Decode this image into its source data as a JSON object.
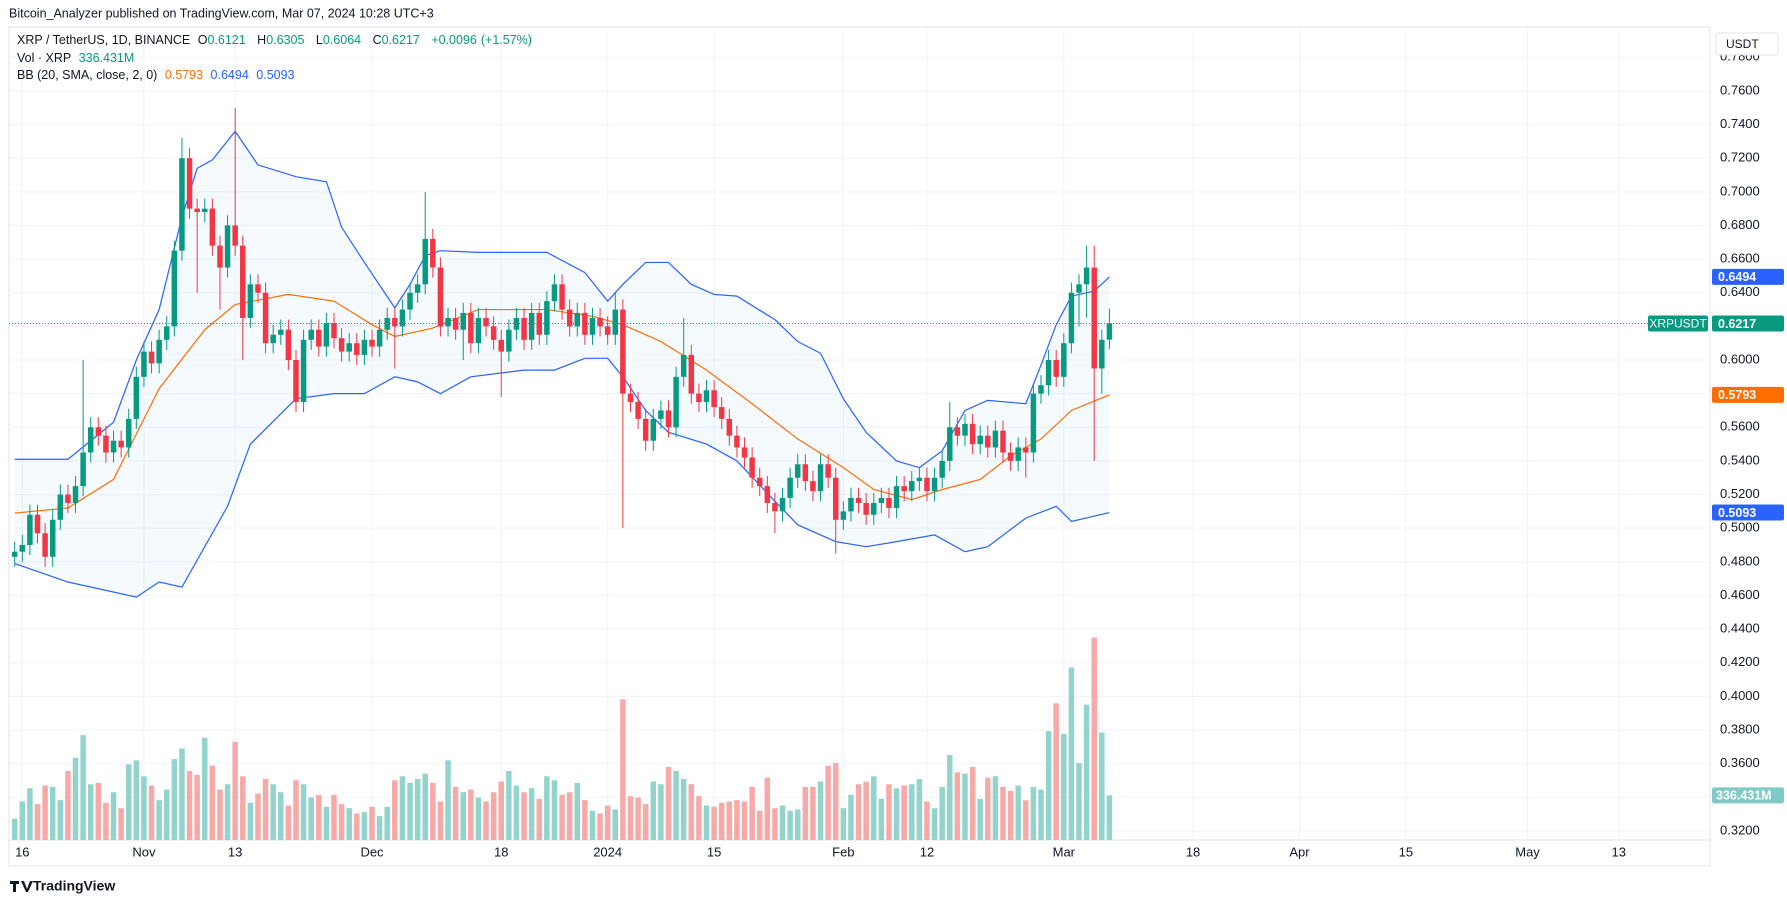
{
  "header": {
    "author_line": "Bitcoin_Analyzer published on TradingView.com, Mar 07, 2024 10:28 UTC+3",
    "footer_logo": "TradingView"
  },
  "chart_data": {
    "type": "candlestick",
    "symbol_line": "XRP / TetherUS, 1D, BINANCE",
    "ohlc_prefixes": [
      "O",
      "H",
      "L",
      "C"
    ],
    "change": "+0.0096",
    "change_pct": "(+1.57%)",
    "currency": "USDT",
    "ticker": "XRPUSDT",
    "grid": true,
    "up_color": "#089981",
    "down_color": "#f23645",
    "xlim": [
      -0.75,
      223
    ],
    "xticks": [
      {
        "value": 1,
        "label": "16"
      },
      {
        "value": 17,
        "label": "Nov"
      },
      {
        "value": 29,
        "label": "13"
      },
      {
        "value": 47,
        "label": "Dec"
      },
      {
        "value": 64,
        "label": "18"
      },
      {
        "value": 78,
        "label": "2024"
      },
      {
        "value": 92,
        "label": "15"
      },
      {
        "value": 109,
        "label": "Feb"
      },
      {
        "value": 120,
        "label": "12"
      },
      {
        "value": 138,
        "label": "Mar"
      },
      {
        "value": 155,
        "label": "18"
      },
      {
        "value": 169,
        "label": "Apr"
      },
      {
        "value": 183,
        "label": "15"
      },
      {
        "value": 199,
        "label": "May"
      },
      {
        "value": 211,
        "label": "13"
      }
    ],
    "ylim": [
      0.3146,
      0.798
    ],
    "yticks": [
      {
        "value": 0.32,
        "label": "0.3200"
      },
      {
        "value": 0.34,
        "label": "0.3400"
      },
      {
        "value": 0.36,
        "label": "0.3600"
      },
      {
        "value": 0.38,
        "label": "0.3800"
      },
      {
        "value": 0.4,
        "label": "0.4000"
      },
      {
        "value": 0.42,
        "label": "0.4200"
      },
      {
        "value": 0.44,
        "label": "0.4400"
      },
      {
        "value": 0.46,
        "label": "0.4600"
      },
      {
        "value": 0.48,
        "label": "0.4800"
      },
      {
        "value": 0.5,
        "label": "0.5000"
      },
      {
        "value": 0.52,
        "label": "0.5200"
      },
      {
        "value": 0.54,
        "label": "0.5400"
      },
      {
        "value": 0.56,
        "label": "0.5600"
      },
      {
        "value": 0.58,
        "label": "0.5800"
      },
      {
        "value": 0.6,
        "label": "0.6000"
      },
      {
        "value": 0.62,
        "label": "0.6200"
      },
      {
        "value": 0.64,
        "label": "0.6400"
      },
      {
        "value": 0.66,
        "label": "0.6600"
      },
      {
        "value": 0.68,
        "label": "0.6800"
      },
      {
        "value": 0.7,
        "label": "0.7000"
      },
      {
        "value": 0.72,
        "label": "0.7200"
      },
      {
        "value": 0.74,
        "label": "0.7400"
      },
      {
        "value": 0.76,
        "label": "0.7600"
      },
      {
        "value": 0.78,
        "label": "0.7800"
      }
    ],
    "open": [
      0.483,
      0.486,
      0.49,
      0.508,
      0.497,
      0.483,
      0.505,
      0.52,
      0.515,
      0.525,
      0.545,
      0.56,
      0.555,
      0.545,
      0.552,
      0.548,
      0.565,
      0.59,
      0.605,
      0.598,
      0.612,
      0.62,
      0.665,
      0.72,
      0.69,
      0.688,
      0.69,
      0.668,
      0.655,
      0.68,
      0.668,
      0.625,
      0.645,
      0.64,
      0.61,
      0.615,
      0.618,
      0.6,
      0.575,
      0.612,
      0.618,
      0.608,
      0.622,
      0.613,
      0.605,
      0.61,
      0.603,
      0.612,
      0.608,
      0.618,
      0.625,
      0.62,
      0.63,
      0.64,
      0.645,
      0.672,
      0.655,
      0.62,
      0.625,
      0.618,
      0.628,
      0.61,
      0.625,
      0.62,
      0.612,
      0.605,
      0.618,
      0.625,
      0.612,
      0.628,
      0.615,
      0.635,
      0.645,
      0.63,
      0.62,
      0.628,
      0.615,
      0.625,
      0.62,
      0.615,
      0.63,
      0.58,
      0.575,
      0.565,
      0.552,
      0.565,
      0.57,
      0.56,
      0.59,
      0.603,
      0.58,
      0.575,
      0.582,
      0.572,
      0.565,
      0.555,
      0.548,
      0.542,
      0.53,
      0.525,
      0.515,
      0.51,
      0.518,
      0.53,
      0.538,
      0.528,
      0.522,
      0.538,
      0.53,
      0.505,
      0.51,
      0.518,
      0.515,
      0.508,
      0.515,
      0.518,
      0.512,
      0.525,
      0.522,
      0.528,
      0.53,
      0.522,
      0.53,
      0.54,
      0.56,
      0.555,
      0.562,
      0.55,
      0.555,
      0.548,
      0.558,
      0.545,
      0.54,
      0.548,
      0.545,
      0.58,
      0.585,
      0.6,
      0.59,
      0.61,
      0.64,
      0.645,
      0.655,
      0.595,
      0.6121
    ],
    "high": [
      0.492,
      0.496,
      0.514,
      0.514,
      0.503,
      0.511,
      0.526,
      0.526,
      0.531,
      0.6,
      0.566,
      0.566,
      0.561,
      0.558,
      0.558,
      0.571,
      0.596,
      0.611,
      0.611,
      0.618,
      0.626,
      0.671,
      0.732,
      0.726,
      0.696,
      0.696,
      0.696,
      0.674,
      0.686,
      0.75,
      0.674,
      0.651,
      0.651,
      0.646,
      0.621,
      0.624,
      0.624,
      0.606,
      0.618,
      0.624,
      0.624,
      0.628,
      0.628,
      0.619,
      0.616,
      0.616,
      0.618,
      0.618,
      0.624,
      0.631,
      0.631,
      0.636,
      0.646,
      0.651,
      0.7,
      0.678,
      0.661,
      0.631,
      0.631,
      0.634,
      0.634,
      0.631,
      0.631,
      0.626,
      0.618,
      0.624,
      0.631,
      0.631,
      0.634,
      0.634,
      0.641,
      0.651,
      0.651,
      0.636,
      0.634,
      0.634,
      0.631,
      0.631,
      0.626,
      0.64,
      0.636,
      0.586,
      0.581,
      0.571,
      0.571,
      0.576,
      0.576,
      0.596,
      0.625,
      0.609,
      0.586,
      0.588,
      0.588,
      0.578,
      0.571,
      0.561,
      0.554,
      0.548,
      0.536,
      0.531,
      0.521,
      0.524,
      0.536,
      0.544,
      0.544,
      0.534,
      0.544,
      0.544,
      0.536,
      0.516,
      0.524,
      0.524,
      0.521,
      0.521,
      0.524,
      0.524,
      0.531,
      0.531,
      0.534,
      0.536,
      0.536,
      0.536,
      0.546,
      0.575,
      0.566,
      0.568,
      0.568,
      0.561,
      0.561,
      0.564,
      0.564,
      0.551,
      0.554,
      0.554,
      0.586,
      0.591,
      0.606,
      0.606,
      0.616,
      0.646,
      0.651,
      0.668,
      0.668,
      0.618,
      0.6305
    ],
    "low": [
      0.477,
      0.48,
      0.484,
      0.491,
      0.477,
      0.477,
      0.499,
      0.509,
      0.509,
      0.519,
      0.539,
      0.549,
      0.539,
      0.539,
      0.542,
      0.542,
      0.559,
      0.584,
      0.592,
      0.592,
      0.606,
      0.614,
      0.659,
      0.684,
      0.64,
      0.682,
      0.662,
      0.63,
      0.649,
      0.662,
      0.6,
      0.619,
      0.634,
      0.604,
      0.604,
      0.609,
      0.594,
      0.569,
      0.569,
      0.606,
      0.602,
      0.602,
      0.607,
      0.599,
      0.599,
      0.597,
      0.597,
      0.602,
      0.602,
      0.612,
      0.595,
      0.614,
      0.624,
      0.634,
      0.639,
      0.649,
      0.614,
      0.614,
      0.612,
      0.6,
      0.604,
      0.604,
      0.614,
      0.606,
      0.578,
      0.599,
      0.612,
      0.606,
      0.606,
      0.609,
      0.609,
      0.629,
      0.624,
      0.614,
      0.614,
      0.609,
      0.609,
      0.614,
      0.609,
      0.609,
      0.5,
      0.569,
      0.559,
      0.546,
      0.546,
      0.559,
      0.554,
      0.554,
      0.584,
      0.574,
      0.569,
      0.569,
      0.566,
      0.559,
      0.549,
      0.542,
      0.536,
      0.524,
      0.519,
      0.509,
      0.497,
      0.504,
      0.512,
      0.524,
      0.522,
      0.516,
      0.516,
      0.524,
      0.485,
      0.499,
      0.504,
      0.509,
      0.502,
      0.502,
      0.509,
      0.506,
      0.506,
      0.516,
      0.516,
      0.522,
      0.516,
      0.516,
      0.524,
      0.534,
      0.549,
      0.549,
      0.544,
      0.544,
      0.542,
      0.542,
      0.539,
      0.534,
      0.534,
      0.53,
      0.539,
      0.574,
      0.579,
      0.584,
      0.584,
      0.604,
      0.62,
      0.625,
      0.54,
      0.58,
      0.6064
    ],
    "close": [
      0.486,
      0.49,
      0.508,
      0.497,
      0.483,
      0.505,
      0.52,
      0.515,
      0.525,
      0.545,
      0.56,
      0.555,
      0.545,
      0.552,
      0.548,
      0.565,
      0.59,
      0.605,
      0.598,
      0.612,
      0.62,
      0.665,
      0.72,
      0.69,
      0.688,
      0.69,
      0.668,
      0.655,
      0.68,
      0.668,
      0.625,
      0.645,
      0.64,
      0.61,
      0.615,
      0.618,
      0.6,
      0.575,
      0.612,
      0.618,
      0.608,
      0.622,
      0.613,
      0.605,
      0.61,
      0.603,
      0.612,
      0.608,
      0.618,
      0.625,
      0.62,
      0.63,
      0.64,
      0.645,
      0.672,
      0.655,
      0.62,
      0.625,
      0.618,
      0.628,
      0.61,
      0.625,
      0.62,
      0.612,
      0.605,
      0.618,
      0.625,
      0.612,
      0.628,
      0.615,
      0.635,
      0.645,
      0.63,
      0.62,
      0.628,
      0.615,
      0.625,
      0.62,
      0.615,
      0.63,
      0.58,
      0.575,
      0.565,
      0.552,
      0.565,
      0.57,
      0.56,
      0.59,
      0.603,
      0.58,
      0.575,
      0.582,
      0.572,
      0.565,
      0.555,
      0.548,
      0.542,
      0.53,
      0.525,
      0.515,
      0.51,
      0.518,
      0.53,
      0.538,
      0.528,
      0.522,
      0.538,
      0.53,
      0.505,
      0.51,
      0.518,
      0.515,
      0.508,
      0.515,
      0.518,
      0.512,
      0.525,
      0.522,
      0.528,
      0.53,
      0.522,
      0.53,
      0.54,
      0.56,
      0.555,
      0.562,
      0.55,
      0.555,
      0.548,
      0.558,
      0.545,
      0.54,
      0.548,
      0.545,
      0.58,
      0.585,
      0.6,
      0.59,
      0.61,
      0.64,
      0.645,
      0.655,
      0.595,
      0.612,
      0.6217
    ],
    "volume": {
      "name": "Vol · XRP",
      "last_label": "336.431M",
      "ylim": [
        0,
        2450
      ],
      "up_color": "#92d3cc",
      "down_color": "#f7a9a7",
      "values": [
        160,
        290,
        390,
        270,
        410,
        400,
        300,
        520,
        620,
        790,
        420,
        430,
        280,
        360,
        240,
        570,
        600,
        480,
        410,
        300,
        380,
        610,
        690,
        520,
        490,
        770,
        560,
        380,
        420,
        740,
        480,
        280,
        350,
        460,
        420,
        360,
        260,
        450,
        420,
        320,
        340,
        250,
        340,
        270,
        240,
        200,
        210,
        250,
        180,
        250,
        450,
        480,
        430,
        460,
        500,
        430,
        290,
        600,
        400,
        360,
        380,
        320,
        290,
        360,
        440,
        520,
        410,
        360,
        390,
        310,
        480,
        450,
        340,
        360,
        430,
        300,
        220,
        200,
        260,
        230,
        1060,
        330,
        320,
        270,
        440,
        420,
        550,
        520,
        460,
        420,
        330,
        260,
        250,
        280,
        290,
        300,
        290,
        400,
        220,
        470,
        240,
        260,
        220,
        230,
        400,
        400,
        440,
        560,
        580,
        240,
        340,
        420,
        440,
        480,
        310,
        420,
        390,
        410,
        420,
        460,
        290,
        240,
        400,
        640,
        510,
        500,
        550,
        310,
        470,
        480,
        400,
        370,
        410,
        300,
        400,
        380,
        820,
        1030,
        800,
        1300,
        580,
        1020,
        1525,
        810,
        336.431
      ]
    },
    "bollinger": {
      "name": "BB (20, SMA, close, 2, 0)",
      "fill": "#2196f3",
      "basis": {
        "color": "#ff6d00",
        "x": [
          0,
          7,
          13,
          19,
          25,
          29,
          36,
          42,
          47,
          50,
          55,
          61,
          70,
          76,
          80,
          85,
          91,
          97,
          103,
          109,
          113,
          118,
          122,
          127,
          131,
          135,
          139,
          144
        ],
        "values": [
          0.509,
          0.512,
          0.529,
          0.583,
          0.618,
          0.633,
          0.639,
          0.635,
          0.621,
          0.614,
          0.619,
          0.63,
          0.63,
          0.626,
          0.621,
          0.611,
          0.594,
          0.574,
          0.553,
          0.536,
          0.523,
          0.517,
          0.523,
          0.529,
          0.543,
          0.553,
          0.57,
          0.5793
        ]
      },
      "upper": {
        "color": "#2962ff",
        "x": [
          0,
          7,
          13,
          16,
          19,
          22,
          24,
          26,
          29,
          32,
          37,
          41,
          43,
          46,
          50,
          52,
          54,
          56,
          61,
          70,
          75,
          78,
          80,
          83,
          86,
          89,
          92,
          95,
          100,
          103,
          106,
          109,
          112,
          116,
          119,
          122,
          125,
          128,
          133,
          135,
          137,
          139,
          142,
          144
        ],
        "values": [
          0.541,
          0.541,
          0.563,
          0.6,
          0.63,
          0.685,
          0.714,
          0.719,
          0.736,
          0.716,
          0.709,
          0.706,
          0.679,
          0.658,
          0.631,
          0.645,
          0.662,
          0.665,
          0.664,
          0.664,
          0.652,
          0.635,
          0.645,
          0.658,
          0.658,
          0.645,
          0.639,
          0.638,
          0.624,
          0.611,
          0.604,
          0.577,
          0.557,
          0.54,
          0.536,
          0.546,
          0.57,
          0.576,
          0.574,
          0.597,
          0.621,
          0.638,
          0.641,
          0.6494
        ]
      },
      "lower": {
        "color": "#2962ff",
        "x": [
          0,
          7,
          16,
          19,
          22,
          25,
          28,
          31,
          37,
          42,
          46,
          50,
          53,
          56,
          60,
          67,
          71,
          75,
          78,
          80,
          83,
          86,
          91,
          95,
          100,
          103,
          108,
          112,
          116,
          121,
          125,
          128,
          133,
          137,
          139,
          144
        ],
        "values": [
          0.479,
          0.468,
          0.459,
          0.468,
          0.465,
          0.489,
          0.513,
          0.55,
          0.577,
          0.58,
          0.58,
          0.59,
          0.587,
          0.58,
          0.59,
          0.594,
          0.594,
          0.601,
          0.601,
          0.59,
          0.57,
          0.557,
          0.55,
          0.54,
          0.516,
          0.502,
          0.492,
          0.489,
          0.492,
          0.496,
          0.486,
          0.489,
          0.506,
          0.513,
          0.504,
          0.5093
        ]
      }
    }
  }
}
